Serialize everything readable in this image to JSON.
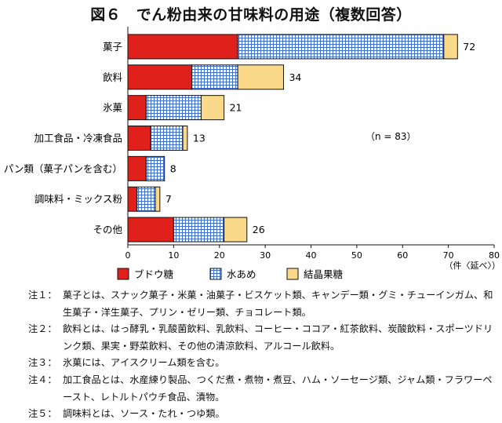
{
  "title": "図６　でん粉由来の甘味料の用途（複数回答）",
  "chart_data": {
    "type": "bar",
    "orientation": "horizontal",
    "stacked": true,
    "categories": [
      "菓子",
      "飲料",
      "氷菓",
      "加工食品・冷凍食品",
      "パン類（菓子パンを含む）",
      "調味料・ミックス粉",
      "その他"
    ],
    "series": [
      {
        "name": "ブドウ糖",
        "values": [
          24,
          14,
          4,
          5,
          4,
          2,
          10
        ],
        "color": "#e0201b",
        "pattern": "solid"
      },
      {
        "name": "水あめ",
        "values": [
          45,
          10,
          12,
          7,
          4,
          4,
          11
        ],
        "color": "#3f6fd1",
        "pattern": "grid"
      },
      {
        "name": "結晶果糖",
        "values": [
          3,
          10,
          5,
          1,
          0,
          1,
          5
        ],
        "color": "#fbd98a",
        "pattern": "solid"
      }
    ],
    "totals": [
      "72",
      "34",
      "21",
      "13",
      "8",
      "7",
      "26"
    ],
    "xlim": [
      0,
      80
    ],
    "xticks": [
      "0",
      "10",
      "20",
      "30",
      "40",
      "50",
      "60",
      "70",
      "80"
    ],
    "xlabel": "（件〈延べ〉）",
    "annotation": "（n = 83）",
    "legend_position": "bottom",
    "grid": false
  },
  "notes": [
    {
      "label": "注１：",
      "text": "菓子とは、スナック菓子・米菓・油菓子・ビスケット類、キャンデー類・グミ・チューインガム、和生菓子・洋生菓子、プリン・ゼリー類、チョコレート類。"
    },
    {
      "label": "注２：",
      "text": "飲料とは、はっ酵乳・乳酸菌飲料、乳飲料、コーヒー・ココア・紅茶飲料、炭酸飲料・スポーツドリンク類、果実・野菜飲料、その他の清涼飲料、アルコール飲料。"
    },
    {
      "label": "注３：",
      "text": "氷菓には、アイスクリーム類を含む。"
    },
    {
      "label": "注４：",
      "text": "加工食品とは、水産練り製品、つくだ煮・煮物・煮豆、ハム・ソーセージ類、ジャム類・フラワーペースト、レトルトパウチ食品、漬物。"
    },
    {
      "label": "注５：",
      "text": "調味料とは、ソース・たれ・つゆ類。"
    }
  ]
}
